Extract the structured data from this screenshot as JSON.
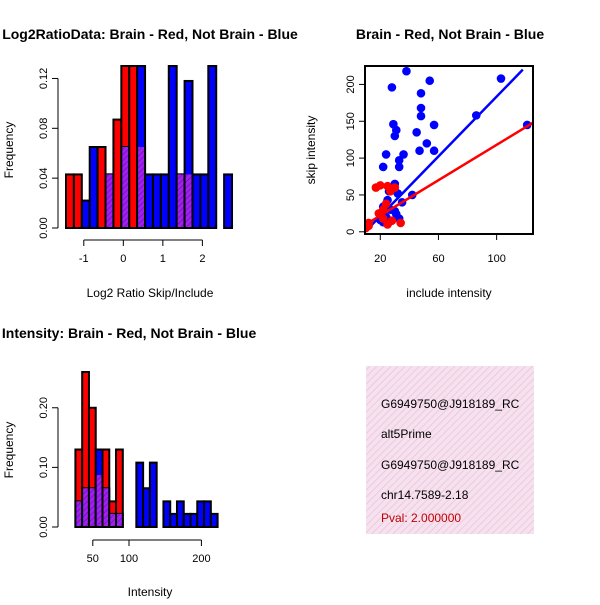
{
  "colors": {
    "brain": "#ff0000",
    "not_brain": "#0000ff",
    "overlap": "#a020f0",
    "info_bg": "#f4dcec",
    "pval": "#c00000"
  },
  "chart_data": [
    {
      "type": "bar",
      "id": "ratio",
      "title": "Log2RatioData: Brain - Red, Not Brain - Blue",
      "xlabel": "Log2 Ratio Skip/Include",
      "ylabel": "Frequency",
      "x_ticks": [
        "-1",
        "0",
        "1",
        "2"
      ],
      "x_tick_values": [
        -1,
        0,
        1,
        2
      ],
      "y_ticks": [
        "0.00",
        "0.04",
        "0.08",
        "0.12"
      ],
      "y_tick_values": [
        0,
        0.04,
        0.08,
        0.12
      ],
      "xlim": [
        -1.45,
        2.8
      ],
      "ylim": [
        0,
        0.13
      ],
      "bin_start": -1.45,
      "bin_width": 0.2,
      "series": [
        {
          "name": "Brain",
          "color": "#ff0000",
          "values": [
            0.043,
            0.043,
            0,
            0,
            0.065,
            0.043,
            0.087,
            0.13,
            0.13,
            0.065,
            0,
            0,
            0,
            0,
            0.043,
            0.043,
            0,
            0,
            0,
            0,
            0
          ]
        },
        {
          "name": "Not Brain",
          "color": "#0000ff",
          "values": [
            0,
            0,
            0.022,
            0.065,
            0,
            0.043,
            0,
            0.065,
            0,
            0.13,
            0.043,
            0.043,
            0.043,
            0.13,
            0.043,
            0.118,
            0.043,
            0.043,
            0.13,
            0,
            0.043
          ]
        }
      ]
    },
    {
      "type": "scatter",
      "id": "scatter",
      "title": "Brain - Red, Not Brain - Blue",
      "xlabel": "include intensity",
      "ylabel": "skip intensity",
      "x_ticks": [
        "20",
        "60",
        "100"
      ],
      "x_tick_values": [
        20,
        60,
        100
      ],
      "y_ticks": [
        "0",
        "50",
        "100",
        "150",
        "200"
      ],
      "y_tick_values": [
        0,
        50,
        100,
        150,
        200
      ],
      "xlim": [
        9.5,
        125
      ],
      "ylim": [
        -3,
        225
      ],
      "series": [
        {
          "name": "Not Brain",
          "color": "#0000ff",
          "points": [
            [
              38,
              218
            ],
            [
              54,
              205
            ],
            [
              103,
              208
            ],
            [
              28,
              196
            ],
            [
              48,
              188
            ],
            [
              48,
              168
            ],
            [
              48,
              157
            ],
            [
              86,
              158
            ],
            [
              29,
              146
            ],
            [
              31,
              138
            ],
            [
              30,
              130
            ],
            [
              57,
              145
            ],
            [
              45,
              135
            ],
            [
              52,
              120
            ],
            [
              24,
              105
            ],
            [
              36,
              105
            ],
            [
              33,
              97
            ],
            [
              33,
              88
            ],
            [
              22,
              88
            ],
            [
              57,
              110
            ],
            [
              47,
              110
            ],
            [
              121,
              145
            ],
            [
              42,
              50
            ],
            [
              30,
              65
            ],
            [
              26,
              55
            ],
            [
              32,
              52
            ],
            [
              25,
              43
            ],
            [
              22,
              34
            ],
            [
              27,
              30
            ],
            [
              30,
              28
            ],
            [
              24,
              20
            ],
            [
              20,
              16
            ],
            [
              22,
              13
            ],
            [
              27,
              15
            ],
            [
              33,
              18
            ],
            [
              31,
              24
            ],
            [
              26,
              13
            ],
            [
              35,
              40
            ]
          ],
          "fit": [
            [
              12,
              5
            ],
            [
              118,
              220
            ]
          ]
        },
        {
          "name": "Brain",
          "color": "#ff0000",
          "points": [
            [
              10,
              5
            ],
            [
              12,
              8
            ],
            [
              17,
              60
            ],
            [
              20,
              63
            ],
            [
              25,
              62
            ],
            [
              27,
              55
            ],
            [
              30,
              60
            ],
            [
              24,
              38
            ],
            [
              22,
              30
            ],
            [
              19,
              25
            ],
            [
              22,
              18
            ],
            [
              28,
              15
            ],
            [
              34,
              12
            ],
            [
              12,
              12
            ],
            [
              25,
              10
            ]
          ],
          "fit": [
            [
              10,
              10
            ],
            [
              125,
              148
            ]
          ]
        }
      ]
    },
    {
      "type": "bar",
      "id": "intensity",
      "title": "Exon Intensity: Brain - Red, Not Brain - Blue",
      "xlabel": "Intensity",
      "ylabel": "Frequency",
      "x_ticks": [
        "50",
        "100",
        "200"
      ],
      "x_tick_values": [
        50,
        100,
        200
      ],
      "y_ticks": [
        "0.00",
        "0.10",
        "0.20"
      ],
      "y_tick_values": [
        0,
        0.1,
        0.2
      ],
      "xlim": [
        13,
        245
      ],
      "ylim": [
        0,
        0.26
      ],
      "bin_start": 26,
      "bin_width": 9.35,
      "series": [
        {
          "name": "Brain",
          "color": "#ff0000",
          "values": [
            0.13,
            0.26,
            0.2,
            0.087,
            0.13,
            0.043,
            0.13,
            0,
            0,
            0,
            0,
            0,
            0,
            0,
            0,
            0,
            0,
            0,
            0,
            0,
            0
          ]
        },
        {
          "name": "Not Brain",
          "color": "#0000ff",
          "values": [
            0.043,
            0.065,
            0.065,
            0.13,
            0.065,
            0.022,
            0.022,
            0,
            0,
            0.108,
            0.065,
            0.108,
            0,
            0.043,
            0.022,
            0.043,
            0.022,
            0.022,
            0.043,
            0.043,
            0.022
          ]
        }
      ]
    }
  ],
  "info_panel": {
    "lines": [
      "G6949750@J918189_RC",
      "alt5Prime",
      "G6949750@J918189_RC",
      "chr14.7589-2.18"
    ],
    "pval": "Pval: 2.000000"
  }
}
